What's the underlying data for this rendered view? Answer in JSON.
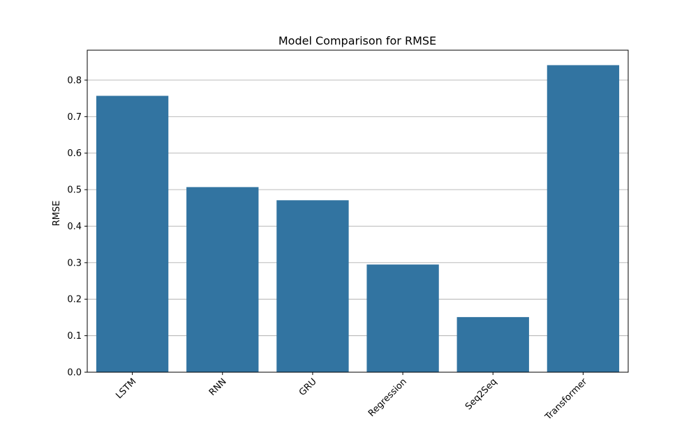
{
  "chart_data": {
    "type": "bar",
    "title": "Model Comparison for RMSE",
    "xlabel": "",
    "ylabel": "RMSE",
    "categories": [
      "LSTM",
      "RNN",
      "GRU",
      "Regression",
      "Seq2Seq",
      "Transformer"
    ],
    "values": [
      0.757,
      0.507,
      0.471,
      0.295,
      0.151,
      0.841
    ],
    "ylim": [
      0,
      0.882
    ],
    "yticks": [
      0.0,
      0.1,
      0.2,
      0.3,
      0.4,
      0.5,
      0.6,
      0.7,
      0.8
    ],
    "ytick_labels": [
      "0.0",
      "0.1",
      "0.2",
      "0.3",
      "0.4",
      "0.5",
      "0.6",
      "0.7",
      "0.8"
    ],
    "grid": "y",
    "xtick_rotation": 45,
    "bar_color": "#3274a1",
    "grid_color": "#b0b0b0",
    "axis_color": "#000000"
  }
}
